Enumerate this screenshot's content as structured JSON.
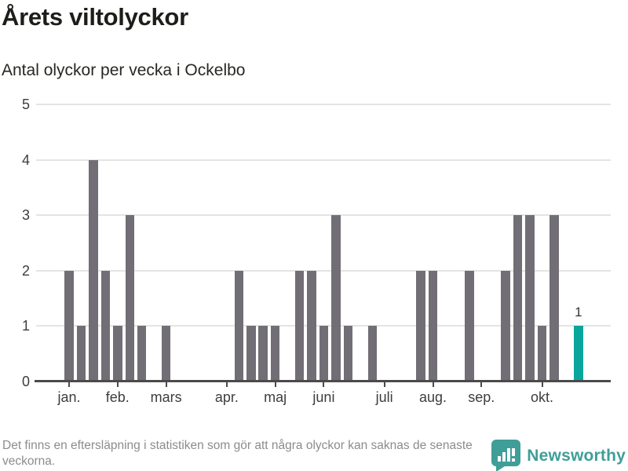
{
  "header": {
    "title": "Årets viltolyckor",
    "subtitle": "Antal olyckor per vecka i Ockelbo"
  },
  "chart_data": {
    "type": "bar",
    "title": "Årets viltolyckor",
    "subtitle": "Antal olyckor per vecka i Ockelbo",
    "xlabel": "",
    "ylabel": "",
    "x_unit": "vecka",
    "x_start_week": 1,
    "n_weeks": 43,
    "values": [
      2,
      1,
      4,
      2,
      1,
      3,
      1,
      0,
      1,
      0,
      0,
      0,
      0,
      0,
      2,
      1,
      1,
      1,
      0,
      2,
      2,
      1,
      3,
      1,
      0,
      1,
      0,
      0,
      0,
      2,
      2,
      0,
      0,
      2,
      0,
      0,
      2,
      3,
      3,
      1,
      3,
      0,
      1
    ],
    "month_ticks": [
      {
        "label": "jan.",
        "week": 1
      },
      {
        "label": "feb.",
        "week": 5
      },
      {
        "label": "mars",
        "week": 9
      },
      {
        "label": "apr.",
        "week": 14
      },
      {
        "label": "maj",
        "week": 18
      },
      {
        "label": "juni",
        "week": 22
      },
      {
        "label": "juli",
        "week": 27
      },
      {
        "label": "aug.",
        "week": 31
      },
      {
        "label": "sep.",
        "week": 35
      },
      {
        "label": "okt.",
        "week": 40
      }
    ],
    "yticks": [
      0,
      1,
      2,
      3,
      4,
      5
    ],
    "ylim": [
      0,
      5
    ],
    "grid": true,
    "legend": false,
    "highlight": {
      "week": 43,
      "value": 1,
      "label": "1"
    },
    "colors": {
      "bar": "#716f75",
      "highlight": "#0aa69b",
      "grid": "#e4e4e4",
      "axis": "#4b4b4b"
    }
  },
  "footer": {
    "note": "Det finns en eftersläpning i statistiken som gör att några olyckor kan saknas de senaste veckorna.",
    "brand": "Newsworthy",
    "brand_color": "#3f9e98"
  }
}
